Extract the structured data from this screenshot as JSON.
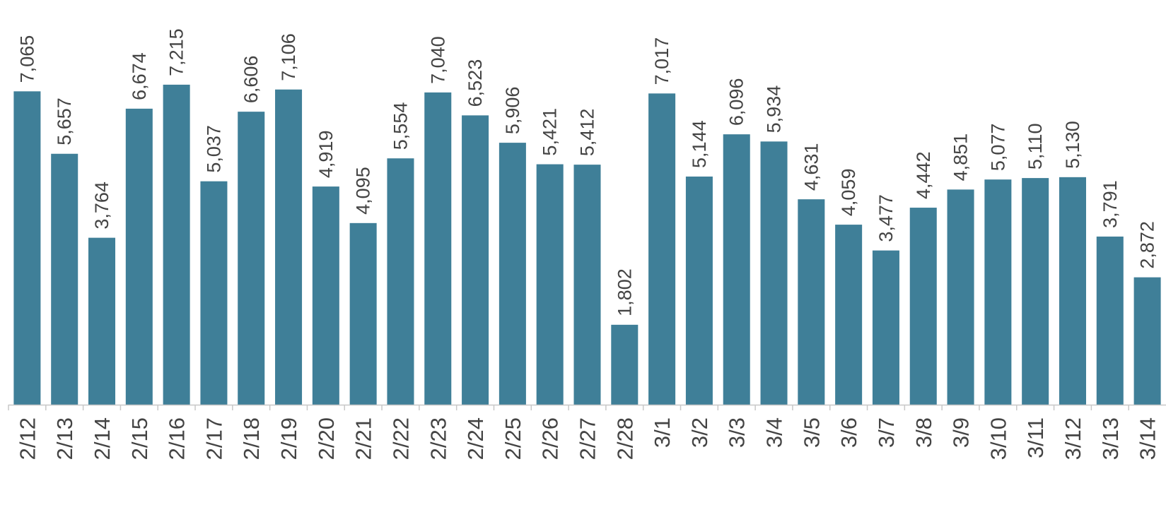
{
  "chart_data": {
    "type": "bar",
    "title": "",
    "xlabel": "",
    "ylabel": "",
    "ylim": [
      0,
      7600
    ],
    "grid": false,
    "legend": "none",
    "bar_color": "#3f7f98",
    "categories": [
      "2/12",
      "2/13",
      "2/14",
      "2/15",
      "2/16",
      "2/17",
      "2/18",
      "2/19",
      "2/20",
      "2/21",
      "2/22",
      "2/23",
      "2/24",
      "2/25",
      "2/26",
      "2/27",
      "2/28",
      "3/1",
      "3/2",
      "3/3",
      "3/4",
      "3/5",
      "3/6",
      "3/7",
      "3/8",
      "3/9",
      "3/10",
      "3/11",
      "3/12",
      "3/13",
      "3/14"
    ],
    "values": [
      7065,
      5657,
      3764,
      6674,
      7215,
      5037,
      6606,
      7106,
      4919,
      4095,
      5554,
      7040,
      6523,
      5906,
      5421,
      5412,
      1802,
      7017,
      5144,
      6096,
      5934,
      4631,
      4059,
      3477,
      4442,
      4851,
      5077,
      5110,
      5130,
      3791,
      2872
    ],
    "value_labels": [
      "7,065",
      "5,657",
      "3,764",
      "6,674",
      "7,215",
      "5,037",
      "6,606",
      "7,106",
      "4,919",
      "4,095",
      "5,554",
      "7,040",
      "6,523",
      "5,906",
      "5,421",
      "5,412",
      "1,802",
      "7,017",
      "5,144",
      "6,096",
      "5,934",
      "4,631",
      "4,059",
      "3,477",
      "4,442",
      "4,851",
      "5,077",
      "5,110",
      "5,130",
      "3,791",
      "2,872"
    ]
  }
}
